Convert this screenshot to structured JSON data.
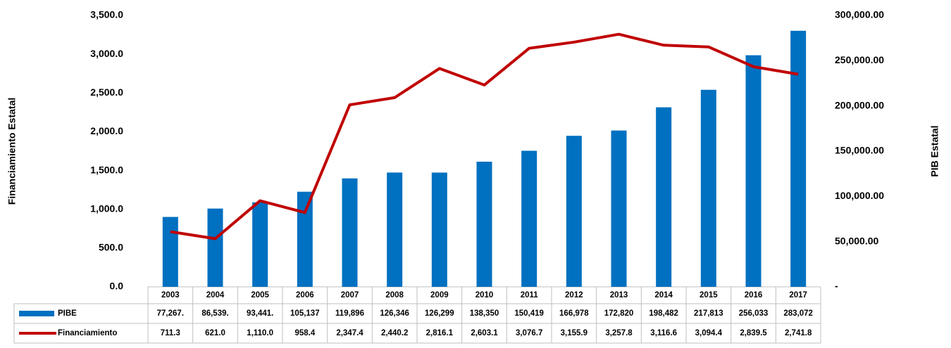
{
  "chart_data": {
    "type": "combo",
    "y_label": "Financiamiento Estatal",
    "y2_label": "PIB Estatal",
    "categories": [
      "2003",
      "2004",
      "2005",
      "2006",
      "2007",
      "2008",
      "2009",
      "2010",
      "2011",
      "2012",
      "2013",
      "2014",
      "2015",
      "2016",
      "2017"
    ],
    "series": [
      {
        "name": "PIBE",
        "type": "bar",
        "axis": "y2",
        "color": "#0070c0",
        "values": [
          77267,
          86539,
          93441,
          105137,
          119896,
          126346,
          126299,
          138350,
          150419,
          166978,
          172820,
          198482,
          217813,
          256033,
          283072
        ],
        "value_labels": [
          "77,267.",
          "86,539.",
          "93,441.",
          "105,137",
          "119,896",
          "126,346",
          "126,299",
          "138,350",
          "150,419",
          "166,978",
          "172,820",
          "198,482",
          "217,813",
          "256,033",
          "283,072"
        ]
      },
      {
        "name": "Financiamiento",
        "type": "line",
        "axis": "y",
        "color": "#c00000",
        "values": [
          711.3,
          621.0,
          1110.0,
          958.4,
          2347.4,
          2440.2,
          2816.1,
          2603.1,
          3076.7,
          3155.9,
          3257.8,
          3116.6,
          3094.4,
          2839.5,
          2741.8
        ],
        "value_labels": [
          "711.3",
          "621.0",
          "1,110.0",
          "958.4",
          "2,347.4",
          "2,440.2",
          "2,816.1",
          "2,603.1",
          "3,076.7",
          "3,155.9",
          "3,257.8",
          "3,116.6",
          "3,094.4",
          "2,839.5",
          "2,741.8"
        ]
      }
    ],
    "ylim": [
      0,
      3500
    ],
    "yticks": [
      {
        "value": 0,
        "label": "0.0"
      },
      {
        "value": 500,
        "label": "500.0"
      },
      {
        "value": 1000,
        "label": "1,000.0"
      },
      {
        "value": 1500,
        "label": "1,500.0"
      },
      {
        "value": 2000,
        "label": "2,000.0"
      },
      {
        "value": 2500,
        "label": "2,500.0"
      },
      {
        "value": 3000,
        "label": "3,000.0"
      },
      {
        "value": 3500,
        "label": "3,500.0"
      }
    ],
    "y2lim": [
      0,
      300000
    ],
    "y2ticks": [
      {
        "value": 0,
        "label": "-"
      },
      {
        "value": 50000,
        "label": "50,000.00"
      },
      {
        "value": 100000,
        "label": "100,000.00"
      },
      {
        "value": 150000,
        "label": "150,000.00"
      },
      {
        "value": 200000,
        "label": "200,000.00"
      },
      {
        "value": 250000,
        "label": "250,000.00"
      },
      {
        "value": 300000,
        "label": "300,000.00"
      }
    ],
    "grid": false,
    "data_table": true
  }
}
